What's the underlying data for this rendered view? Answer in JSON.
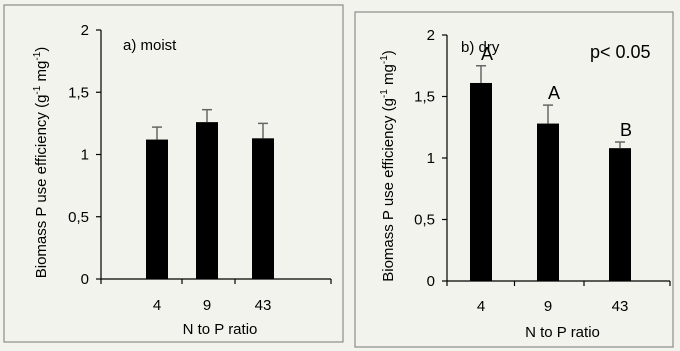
{
  "figure": {
    "background": "#f3f3ed",
    "border_color": "#8c8c8c",
    "bar_color": "#000000",
    "errorbar_color": "#666666"
  },
  "chart_data": [
    {
      "type": "bar",
      "title": "a) moist",
      "xlabel": "N to P ratio",
      "ylabel": "Biomass P use efficiency (g",
      "ylabel_sup1": "-1",
      "ylabel_mid": " mg",
      "ylabel_sup2": "-1",
      "ylabel_end": ")",
      "categories": [
        "4",
        "9",
        "43"
      ],
      "values": [
        1.12,
        1.26,
        1.13
      ],
      "errors": [
        0.1,
        0.1,
        0.12
      ],
      "letters": [
        "",
        "",
        ""
      ],
      "annotation": "",
      "ylim": [
        0,
        2
      ],
      "yticks": [
        0,
        0.5,
        1,
        1.5,
        2
      ],
      "ytick_labels": [
        "0",
        "0,5",
        "1",
        "1,5",
        "2"
      ],
      "grid": false,
      "legend": "none"
    },
    {
      "type": "bar",
      "title": "b) dry",
      "xlabel": "N to P ratio",
      "ylabel": "Biomass P use efficiency (g",
      "ylabel_sup1": "-1",
      "ylabel_mid": " mg",
      "ylabel_sup2": "-1",
      "ylabel_end": ")",
      "categories": [
        "4",
        "9",
        "43"
      ],
      "values": [
        1.61,
        1.28,
        1.08
      ],
      "errors": [
        0.14,
        0.15,
        0.05
      ],
      "letters": [
        "A",
        "A",
        "B"
      ],
      "annotation": "p< 0.05",
      "ylim": [
        0,
        2
      ],
      "yticks": [
        0,
        0.5,
        1,
        1.5,
        2
      ],
      "ytick_labels": [
        "0",
        "0,5",
        "1",
        "1,5",
        "2"
      ],
      "grid": false,
      "legend": "none"
    }
  ]
}
